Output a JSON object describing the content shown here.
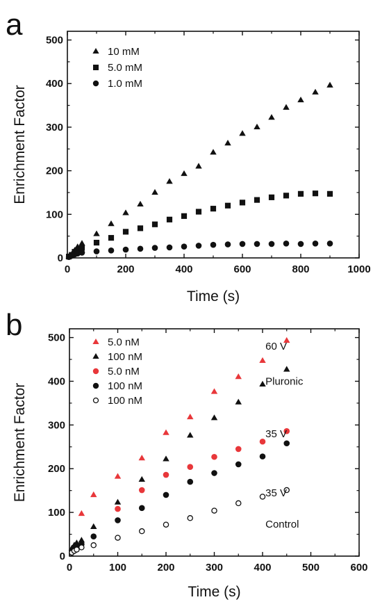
{
  "chart_data": [
    {
      "panel": "a",
      "type": "scatter",
      "xlabel": "Time (s)",
      "ylabel": "Enrichment Factor",
      "xlim": [
        0,
        1000
      ],
      "ylim": [
        0,
        520
      ],
      "xticks": [
        0,
        200,
        400,
        600,
        800,
        1000
      ],
      "yticks": [
        0,
        100,
        200,
        300,
        400,
        500
      ],
      "legend_position": "top-left",
      "series": [
        {
          "name": "10 mM",
          "marker": "triangle",
          "color": "#111111",
          "x": [
            5,
            15,
            25,
            35,
            50,
            100,
            150,
            200,
            250,
            300,
            350,
            400,
            450,
            500,
            550,
            600,
            650,
            700,
            750,
            800,
            850,
            900
          ],
          "y": [
            3,
            8,
            17,
            25,
            33,
            55,
            78,
            103,
            123,
            150,
            175,
            193,
            210,
            242,
            263,
            285,
            300,
            322,
            345,
            362,
            380,
            396
          ]
        },
        {
          "name": "5.0 mM",
          "marker": "square",
          "color": "#111111",
          "x": [
            5,
            15,
            25,
            35,
            50,
            100,
            150,
            200,
            250,
            300,
            350,
            400,
            450,
            500,
            550,
            600,
            650,
            700,
            750,
            800,
            850,
            900
          ],
          "y": [
            3,
            7,
            14,
            18,
            23,
            35,
            46,
            60,
            68,
            77,
            88,
            96,
            106,
            113,
            120,
            127,
            133,
            139,
            143,
            147,
            148,
            147
          ]
        },
        {
          "name": "1.0 mM",
          "marker": "circle",
          "color": "#111111",
          "x": [
            5,
            15,
            25,
            35,
            50,
            100,
            150,
            200,
            250,
            300,
            350,
            400,
            450,
            500,
            550,
            600,
            650,
            700,
            750,
            800,
            850,
            900
          ],
          "y": [
            2,
            5,
            8,
            10,
            12,
            15,
            17,
            19,
            21,
            23,
            24,
            26,
            28,
            30,
            31,
            32,
            32,
            32,
            33,
            32,
            33,
            33
          ]
        }
      ]
    },
    {
      "panel": "b",
      "type": "scatter",
      "xlabel": "Time (s)",
      "ylabel": "Enrichment Factor",
      "xlim": [
        0,
        600
      ],
      "ylim": [
        0,
        520
      ],
      "xticks": [
        0,
        100,
        200,
        300,
        400,
        500,
        600
      ],
      "yticks": [
        0,
        100,
        200,
        300,
        400,
        500
      ],
      "legend_position": "top-left",
      "annotations": [
        {
          "text": "60 V",
          "x": 475,
          "y": 480
        },
        {
          "text": "Pluronic",
          "x": 475,
          "y": 400
        },
        {
          "text": "35 V",
          "x": 475,
          "y": 280
        },
        {
          "text": "35 V",
          "x": 475,
          "y": 145
        },
        {
          "text": "Control",
          "x": 475,
          "y": 73
        }
      ],
      "series": [
        {
          "name": "5.0 nM",
          "marker": "triangle",
          "color": "#e8373a",
          "x": [
            25,
            50,
            100,
            150,
            200,
            250,
            300,
            350,
            400,
            450
          ],
          "y": [
            97,
            140,
            182,
            224,
            282,
            318,
            376,
            410,
            447,
            493
          ]
        },
        {
          "name": "100 nM",
          "marker": "triangle",
          "color": "#111111",
          "x": [
            5,
            10,
            15,
            25,
            50,
            100,
            150,
            200,
            250,
            300,
            350,
            400,
            450
          ],
          "y": [
            18,
            25,
            30,
            36,
            67,
            123,
            175,
            222,
            276,
            316,
            352,
            393,
            427
          ]
        },
        {
          "name": "5.0 nM",
          "marker": "circle",
          "color": "#e8373a",
          "x": [
            100,
            150,
            200,
            250,
            300,
            350,
            400,
            450
          ],
          "y": [
            108,
            151,
            186,
            204,
            227,
            245,
            262,
            286
          ]
        },
        {
          "name": "100 nM",
          "marker": "circle",
          "color": "#111111",
          "x": [
            5,
            10,
            15,
            25,
            50,
            100,
            150,
            200,
            250,
            300,
            350,
            400,
            450
          ],
          "y": [
            13,
            18,
            22,
            27,
            45,
            82,
            110,
            140,
            170,
            190,
            210,
            228,
            258
          ]
        },
        {
          "name": "100 nM",
          "marker": "open-circle",
          "color": "#111111",
          "x": [
            5,
            10,
            15,
            25,
            50,
            100,
            150,
            200,
            250,
            300,
            350,
            400,
            450
          ],
          "y": [
            8,
            12,
            15,
            20,
            25,
            42,
            57,
            72,
            87,
            104,
            121,
            136,
            151
          ]
        }
      ]
    }
  ]
}
